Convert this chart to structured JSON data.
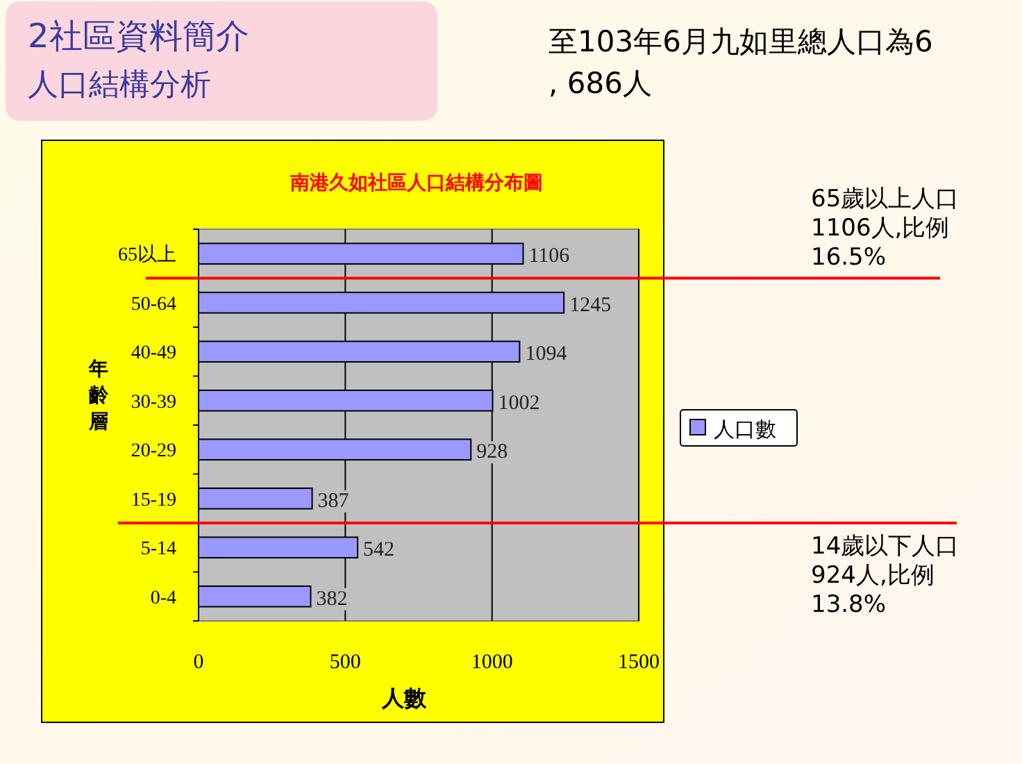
{
  "chart_data": {
    "type": "bar",
    "orientation": "horizontal",
    "title": "南港久如社區人口結構分布圖",
    "xlabel": "人數",
    "ylabel": "年齡層",
    "categories": [
      "65以上",
      "50-64",
      "40-49",
      "30-39",
      "20-29",
      "15-19",
      "5-14",
      "0-4"
    ],
    "series": [
      {
        "name": "人口數",
        "color": "#9999ff",
        "values": [
          1106,
          1245,
          1094,
          1002,
          928,
          387,
          542,
          382
        ]
      }
    ],
    "data_labels": true,
    "xlim": [
      0,
      1500
    ],
    "xticks": [
      0,
      500,
      1000,
      1500
    ],
    "grid": "x",
    "legend": "right",
    "ref_lines": [
      {
        "axis": "y",
        "value": "65以上",
        "label": "65歲以上人口\n1106人,比例\n16.5%",
        "color": "#ff0000"
      },
      {
        "axis": "y",
        "value": "15-19",
        "label": "14歲以下人口\n924人,比例\n13.8%",
        "color": "#ff0000"
      }
    ],
    "annotations": [
      "2社區資料簡介",
      "人口結構分析",
      "至103年6月九如里總人口為6, 686人"
    ]
  }
}
